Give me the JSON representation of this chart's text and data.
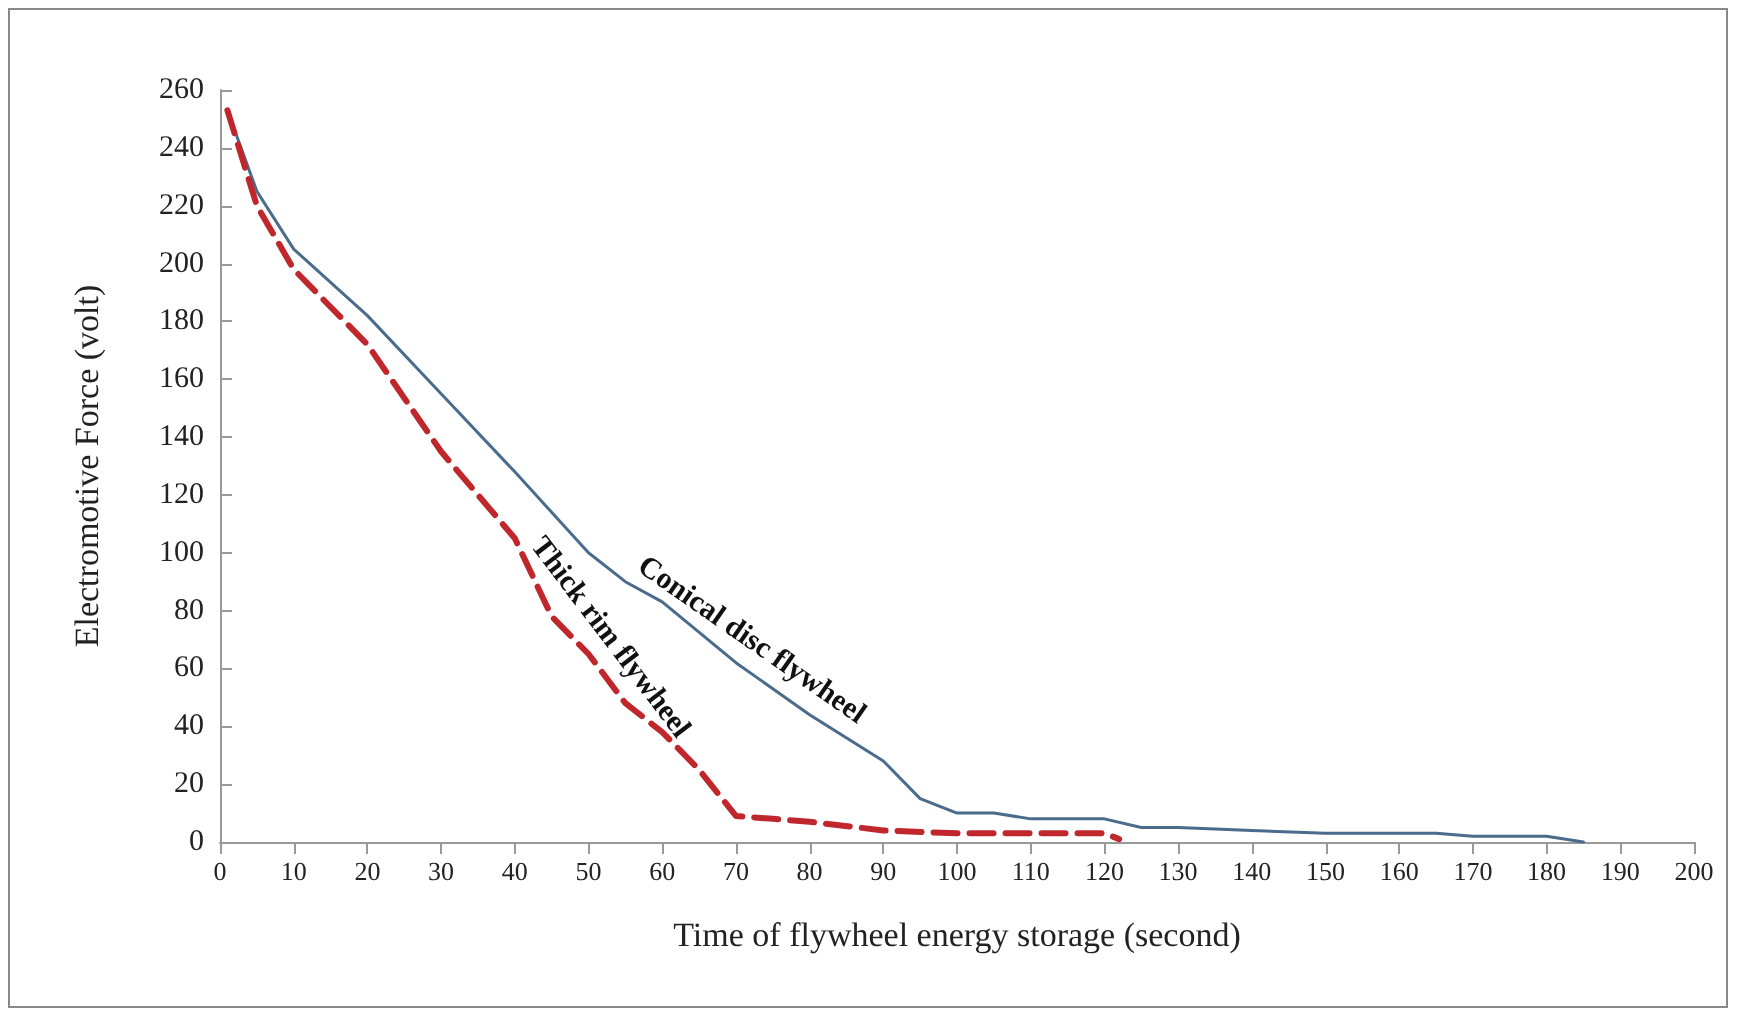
{
  "chart_data": {
    "type": "line",
    "xlabel": "Time of flywheel energy storage (second)",
    "ylabel": "Electromotive Force (volt)",
    "xlim": [
      0,
      200
    ],
    "xticks": [
      0,
      10,
      20,
      30,
      40,
      50,
      60,
      70,
      80,
      90,
      100,
      110,
      120,
      130,
      140,
      150,
      160,
      170,
      180,
      190,
      200
    ],
    "ylim": [
      0,
      260
    ],
    "yticks": [
      0,
      20,
      40,
      60,
      80,
      100,
      120,
      140,
      160,
      180,
      200,
      220,
      240,
      260
    ],
    "grid": false,
    "legend": false,
    "marker": "none",
    "series": [
      {
        "name": "Conical disc flywheel",
        "color": "#4a6b8c",
        "line_style": "solid",
        "x": [
          1,
          5,
          10,
          20,
          30,
          40,
          50,
          55,
          60,
          70,
          80,
          90,
          95,
          100,
          105,
          110,
          120,
          125,
          130,
          140,
          150,
          160,
          165,
          170,
          180,
          185
        ],
        "values": [
          253,
          225,
          205,
          182,
          155,
          128,
          100,
          90,
          83,
          62,
          44,
          28,
          15,
          10,
          10,
          8,
          8,
          5,
          5,
          4,
          3,
          3,
          3,
          2,
          2,
          0
        ]
      },
      {
        "name": "Thick rim flywheel",
        "color": "#c0272d",
        "line_style": "dashed",
        "x": [
          1,
          5,
          10,
          20,
          30,
          40,
          45,
          50,
          55,
          60,
          65,
          70,
          75,
          80,
          90,
          100,
          110,
          120,
          122
        ],
        "values": [
          253,
          220,
          198,
          172,
          135,
          105,
          78,
          65,
          48,
          38,
          25,
          9,
          8,
          7,
          4,
          3,
          3,
          3,
          1
        ]
      }
    ]
  }
}
